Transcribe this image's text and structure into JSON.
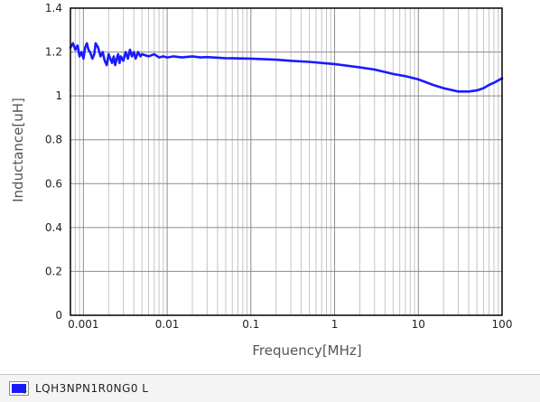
{
  "chart_data": {
    "type": "line",
    "title": "",
    "xlabel": "Frequency[MHz]",
    "ylabel": "Inductance[uH]",
    "x_scale": "log",
    "xlim": [
      0.0007,
      100
    ],
    "ylim": [
      0,
      1.4
    ],
    "grid": true,
    "legend_position": "bottom-left",
    "x_ticks": [
      {
        "value": 0.001,
        "label": "0.001"
      },
      {
        "value": 0.01,
        "label": "0.01"
      },
      {
        "value": 0.1,
        "label": "0.1"
      },
      {
        "value": 1,
        "label": "1"
      },
      {
        "value": 10,
        "label": "10"
      },
      {
        "value": 100,
        "label": "100"
      }
    ],
    "y_ticks": [
      {
        "value": 0,
        "label": "0"
      },
      {
        "value": 0.2,
        "label": "0.2"
      },
      {
        "value": 0.4,
        "label": "0.4"
      },
      {
        "value": 0.6,
        "label": "0.6"
      },
      {
        "value": 0.8,
        "label": "0.8"
      },
      {
        "value": 1.0,
        "label": "1"
      },
      {
        "value": 1.2,
        "label": "1.2"
      },
      {
        "value": 1.4,
        "label": "1.4"
      }
    ],
    "series": [
      {
        "name": "LQH3NPN1R0NG0  L",
        "color": "#1a1aff",
        "x": [
          0.0007,
          0.00075,
          0.0008,
          0.00085,
          0.0009,
          0.00095,
          0.001,
          0.00105,
          0.0011,
          0.00115,
          0.0012,
          0.00128,
          0.00135,
          0.0014,
          0.0015,
          0.0016,
          0.0017,
          0.0018,
          0.0019,
          0.002,
          0.0021,
          0.0022,
          0.0023,
          0.0024,
          0.0025,
          0.0026,
          0.0027,
          0.0028,
          0.003,
          0.0032,
          0.0034,
          0.0036,
          0.0038,
          0.004,
          0.0042,
          0.0045,
          0.0048,
          0.005,
          0.006,
          0.007,
          0.008,
          0.009,
          0.01,
          0.012,
          0.015,
          0.02,
          0.025,
          0.03,
          0.05,
          0.1,
          0.2,
          0.3,
          0.5,
          1,
          2,
          3,
          5,
          7,
          10,
          15,
          20,
          30,
          40,
          50,
          60,
          70,
          80,
          100
        ],
        "y": [
          1.22,
          1.24,
          1.21,
          1.23,
          1.18,
          1.2,
          1.17,
          1.22,
          1.24,
          1.21,
          1.2,
          1.17,
          1.19,
          1.24,
          1.22,
          1.18,
          1.2,
          1.16,
          1.14,
          1.19,
          1.17,
          1.15,
          1.18,
          1.14,
          1.17,
          1.19,
          1.15,
          1.18,
          1.16,
          1.2,
          1.17,
          1.21,
          1.18,
          1.2,
          1.17,
          1.2,
          1.18,
          1.19,
          1.18,
          1.19,
          1.175,
          1.18,
          1.175,
          1.18,
          1.175,
          1.18,
          1.175,
          1.177,
          1.172,
          1.17,
          1.165,
          1.16,
          1.155,
          1.145,
          1.13,
          1.12,
          1.1,
          1.09,
          1.075,
          1.05,
          1.035,
          1.02,
          1.02,
          1.025,
          1.035,
          1.05,
          1.06,
          1.08
        ]
      }
    ]
  }
}
